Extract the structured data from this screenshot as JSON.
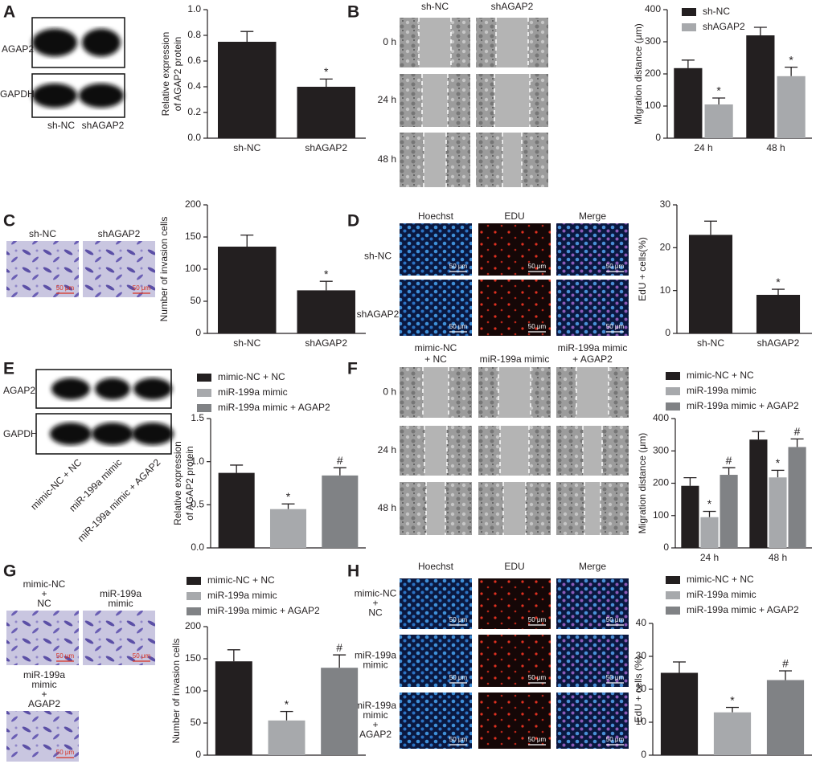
{
  "panels": {
    "A": {
      "label": "A",
      "rows": [
        "AGAP2",
        "GAPDH"
      ],
      "lanes": [
        "sh-NC",
        "shAGAP2"
      ]
    },
    "B": {
      "label": "B",
      "columns": [
        "sh-NC",
        "shAGAP2"
      ],
      "rows": [
        "0 h",
        "24 h",
        "48 h"
      ]
    },
    "C": {
      "label": "C",
      "images": [
        "sh-NC",
        "shAGAP2"
      ],
      "scale_bar": "50 μm"
    },
    "D": {
      "label": "D",
      "columns": [
        "Hoechst",
        "EDU",
        "Merge"
      ],
      "rows": [
        "sh-NC",
        "shAGAP2"
      ],
      "scale_bar": "50 μm"
    },
    "E": {
      "label": "E",
      "rows": [
        "AGAP2",
        "GAPDH"
      ],
      "lanes": [
        "mimic-NC + NC",
        "miR-199a mimic",
        "miR-199a mimic + AGAP2"
      ]
    },
    "F": {
      "label": "F",
      "columns": [
        [
          "mimic-NC",
          "+ NC"
        ],
        [
          "miR-199a mimic"
        ],
        [
          "miR-199a mimic",
          "+ AGAP2"
        ]
      ],
      "rows": [
        "0 h",
        "24 h",
        "48 h"
      ]
    },
    "G": {
      "label": "G",
      "images": [
        [
          "mimic-NC",
          "+",
          "NC"
        ],
        [
          "miR-199a",
          "mimic"
        ],
        [
          "miR-199a",
          "mimic",
          "+",
          "AGAP2"
        ]
      ],
      "scale_bar": "50 μm"
    },
    "H": {
      "label": "H",
      "columns": [
        "Hoechst",
        "EDU",
        "Merge"
      ],
      "rows": [
        [
          "mimic-NC",
          "+",
          "NC"
        ],
        [
          "miR-199a",
          "mimic"
        ],
        [
          "miR-199a",
          "mimic",
          "+",
          "AGAP2"
        ]
      ],
      "scale_bar": "50 μm"
    }
  },
  "chart_data": [
    {
      "type": "bar",
      "y_label": [
        "Relative expression",
        "of AGAP2 protein"
      ],
      "categories": [
        "sh-NC",
        "shAGAP2"
      ],
      "series": [
        {
          "color": "#231f20",
          "values": [
            0.75,
            0.4
          ],
          "errors": [
            0.08,
            0.06
          ],
          "annotations": [
            null,
            "*"
          ]
        }
      ],
      "ylim": [
        0,
        1.0
      ],
      "yticks": [
        {
          "value": 0,
          "label": "0.0"
        },
        0.2,
        0.4,
        0.6,
        0.8,
        {
          "value": 1.0,
          "label": "1.0"
        }
      ]
    },
    {
      "type": "bar",
      "y_label": [
        "Migration distance (μm)"
      ],
      "categories": [
        "24 h",
        "48 h"
      ],
      "legend": "upper left",
      "series": [
        {
          "name": "sh-NC",
          "color": "#231f20",
          "values": [
            218,
            320
          ],
          "errors": [
            25,
            25
          ],
          "annotations": [
            null,
            null
          ]
        },
        {
          "name": "shAGAP2",
          "color": "#a7a9ac",
          "values": [
            105,
            193
          ],
          "errors": [
            20,
            28
          ],
          "annotations": [
            "*",
            "*"
          ]
        }
      ],
      "ylim": [
        0,
        400
      ],
      "yticks": [
        0,
        100,
        200,
        300,
        400
      ]
    },
    {
      "type": "bar",
      "y_label": [
        "Number of invasion cells"
      ],
      "categories": [
        "sh-NC",
        "shAGAP2"
      ],
      "series": [
        {
          "color": "#231f20",
          "values": [
            135,
            67
          ],
          "errors": [
            18,
            14
          ],
          "annotations": [
            null,
            "*"
          ]
        }
      ],
      "ylim": [
        0,
        200
      ],
      "yticks": [
        0,
        50,
        100,
        150,
        200
      ]
    },
    {
      "type": "bar",
      "y_label": [
        "EdU + cells(%)"
      ],
      "categories": [
        "sh-NC",
        "shAGAP2"
      ],
      "series": [
        {
          "color": "#231f20",
          "values": [
            23,
            9
          ],
          "errors": [
            3.2,
            1.3
          ],
          "annotations": [
            null,
            "*"
          ]
        }
      ],
      "ylim": [
        0,
        30
      ],
      "yticks": [
        0,
        10,
        20,
        30
      ]
    },
    {
      "type": "bar",
      "y_label": [
        "Relative expression",
        "of AGAP2 protein"
      ],
      "categories": [
        null
      ],
      "legend": "above",
      "series": [
        {
          "name": "mimic-NC + NC",
          "color": "#231f20",
          "values": [
            0.87
          ],
          "errors": [
            0.09
          ],
          "annotations": [
            null
          ]
        },
        {
          "name": "miR-199a mimic",
          "color": "#a7a9ac",
          "values": [
            0.45
          ],
          "errors": [
            0.06
          ],
          "annotations": [
            "*"
          ]
        },
        {
          "name": "miR-199a mimic + AGAP2",
          "color": "#808285",
          "values": [
            0.84
          ],
          "errors": [
            0.09
          ],
          "annotations": [
            "#"
          ]
        }
      ],
      "ylim": [
        0,
        1.5
      ],
      "yticks": [
        {
          "value": 0,
          "label": "0.0"
        },
        0.5,
        {
          "value": 1.0,
          "label": "1.0"
        },
        1.5
      ]
    },
    {
      "type": "bar",
      "y_label": [
        "Migration distance (μm)"
      ],
      "categories": [
        "24 h",
        "48 h"
      ],
      "legend": "above",
      "series": [
        {
          "name": "mimic-NC + NC",
          "color": "#231f20",
          "values": [
            192,
            335
          ],
          "errors": [
            25,
            25
          ],
          "annotations": [
            null,
            null
          ]
        },
        {
          "name": "miR-199a mimic",
          "color": "#a7a9ac",
          "values": [
            95,
            218
          ],
          "errors": [
            18,
            22
          ],
          "annotations": [
            "*",
            "*"
          ]
        },
        {
          "name": "miR-199a mimic + AGAP2",
          "color": "#808285",
          "values": [
            226,
            312
          ],
          "errors": [
            22,
            25
          ],
          "annotations": [
            "#",
            "#"
          ]
        }
      ],
      "ylim": [
        0,
        400
      ],
      "yticks": [
        0,
        100,
        200,
        300,
        400
      ]
    },
    {
      "type": "bar",
      "y_label": [
        "Number of invasion cells"
      ],
      "categories": [
        null
      ],
      "legend": "above",
      "series": [
        {
          "name": "mimic-NC + NC",
          "color": "#231f20",
          "values": [
            146
          ],
          "errors": [
            18
          ],
          "annotations": [
            null
          ]
        },
        {
          "name": "miR-199a mimic",
          "color": "#a7a9ac",
          "values": [
            54
          ],
          "errors": [
            14
          ],
          "annotations": [
            "*"
          ]
        },
        {
          "name": "miR-199a mimic + AGAP2",
          "color": "#808285",
          "values": [
            136
          ],
          "errors": [
            20
          ],
          "annotations": [
            "#"
          ]
        }
      ],
      "ylim": [
        0,
        200
      ],
      "yticks": [
        0,
        50,
        100,
        150,
        200
      ]
    },
    {
      "type": "bar",
      "y_label": [
        "EdU + cells (%)"
      ],
      "categories": [
        null
      ],
      "legend": "above",
      "series": [
        {
          "name": "mimic-NC + NC",
          "color": "#231f20",
          "values": [
            25
          ],
          "errors": [
            3.3
          ],
          "annotations": [
            null
          ]
        },
        {
          "name": "miR-199a mimic",
          "color": "#a7a9ac",
          "values": [
            13
          ],
          "errors": [
            1.5
          ],
          "annotations": [
            "*"
          ]
        },
        {
          "name": "miR-199a mimic + AGAP2",
          "color": "#808285",
          "values": [
            22.8
          ],
          "errors": [
            2.8
          ],
          "annotations": [
            "#"
          ]
        }
      ],
      "ylim": [
        0,
        40
      ],
      "yticks": [
        0,
        10,
        20,
        30,
        40
      ]
    }
  ]
}
